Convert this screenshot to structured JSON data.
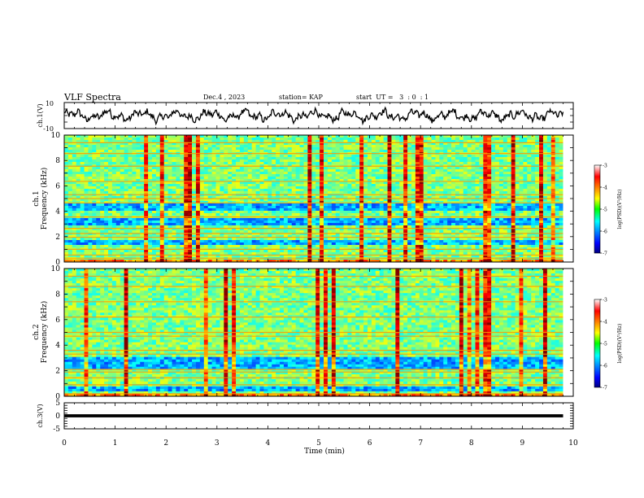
{
  "header": {
    "title": "VLF Spectra",
    "date": "Dec.4 , 2023",
    "station": "station= KAP",
    "start_ut": "start  UT =   3  : 0  : 1"
  },
  "chart_data": [
    {
      "type": "line",
      "panel": "ch1-waveform",
      "ylabel": "ch.1(V)",
      "ylim": [
        -10,
        10
      ],
      "yticks": [
        "10",
        "-10"
      ],
      "xlim": [
        0,
        10
      ],
      "data_extent_min": 9.8,
      "color": "#000000"
    },
    {
      "type": "heatmap",
      "panel": "ch1-spectrogram",
      "ylabel": "ch.1\nFrequency (kHz)",
      "ylim": [
        0,
        10
      ],
      "yticks": [
        "0",
        "2",
        "4",
        "6",
        "8",
        "10"
      ],
      "xlim": [
        0,
        10
      ],
      "data_extent_min": 9.8,
      "colorbar": {
        "label": "log(PSD)(V²/Hz)",
        "range": [
          -7,
          -3
        ],
        "ticks": [
          "-3",
          "-4",
          "-5",
          "-6",
          "-7"
        ]
      },
      "dark_bands_khz": [
        [
          4.0,
          4.55
        ],
        [
          2.85,
          3.45
        ],
        [
          1.3,
          1.7
        ]
      ],
      "bright_lines_khz": [
        0.3,
        0.55,
        1.0,
        1.95,
        2.25,
        2.65,
        3.55,
        4.65,
        5.0,
        5.3,
        6.35,
        7.55,
        8.55,
        9.4
      ]
    },
    {
      "type": "heatmap",
      "panel": "ch2-spectrogram",
      "ylabel": "ch.2\nFrequency (kHz)",
      "ylim": [
        0,
        10
      ],
      "yticks": [
        "0",
        "2",
        "4",
        "6",
        "8",
        "10"
      ],
      "xlim": [
        0,
        10
      ],
      "data_extent_min": 9.8,
      "colorbar": {
        "label": "log(PSD)(V²/Hz)",
        "range": [
          -7,
          -3
        ],
        "ticks": [
          "-3",
          "-4",
          "-5",
          "-6",
          "-7"
        ]
      },
      "dark_bands_khz": [
        [
          2.2,
          3.05
        ],
        [
          0.3,
          0.85
        ]
      ],
      "bright_lines_khz": [
        0.2,
        0.9,
        1.45,
        1.9,
        2.1,
        3.3,
        3.6,
        4.7,
        5.0,
        6.2,
        7.4,
        8.6,
        9.4
      ]
    },
    {
      "type": "line",
      "panel": "ch3-waveform",
      "ylabel": "ch.3(V)",
      "ylim": [
        -5,
        5
      ],
      "yticks": [
        "5",
        "0",
        "-5"
      ],
      "xlim": [
        0,
        10
      ],
      "data_extent_min": 9.8,
      "level_v": 0.0,
      "band_halfwidth_v": 0.6,
      "color": "#000000"
    }
  ],
  "x_axis": {
    "label": "Time (min)",
    "ticks": [
      "0",
      "1",
      "2",
      "3",
      "4",
      "5",
      "6",
      "7",
      "8",
      "9",
      "10"
    ],
    "range": [
      0,
      10
    ]
  }
}
